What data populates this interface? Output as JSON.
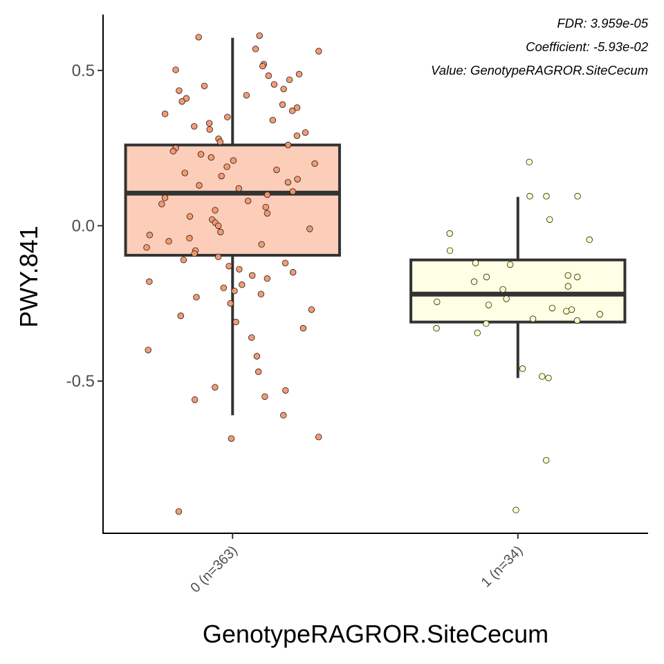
{
  "chart_data": {
    "type": "box",
    "xlabel": "GenotypeRAGROR.SiteCecum",
    "ylabel": "PWY.841",
    "ylim": [
      -0.99,
      0.68
    ],
    "yticks": [
      {
        "value": 0.5,
        "label": "0.5"
      },
      {
        "value": 0.0,
        "label": "0.0"
      },
      {
        "value": -0.5,
        "label": "-0.5"
      }
    ],
    "annotations": [
      "FDR: 3.959e-05",
      "Coefficient: -5.93e-02",
      "Value: GenotypeRAGROR.SiteCecum"
    ],
    "grid": false,
    "legend": "none",
    "categories": [
      "0 (n=363)",
      "1 (n=34)"
    ],
    "boxes": [
      {
        "category": "0 (n=363)",
        "q1": -0.095,
        "median": 0.105,
        "q3": 0.26,
        "whisker_low": -0.61,
        "whisker_high": 0.605,
        "fill": "#fbc5ae",
        "point_color": "#f4966b"
      },
      {
        "category": "1 (n=34)",
        "q1": -0.31,
        "median": -0.22,
        "q3": -0.11,
        "whisker_low": -0.49,
        "whisker_high": 0.093,
        "fill": "#ffffe0",
        "point_color": "#ffffc2"
      }
    ],
    "points": [
      {
        "group": 0,
        "values": [
          0.612,
          0.607,
          0.569,
          0.562,
          0.52,
          0.514,
          0.502,
          0.488,
          0.483,
          0.47,
          0.455,
          0.45,
          0.44,
          0.435,
          0.42,
          0.41,
          0.4,
          0.39,
          0.38,
          0.37,
          0.36,
          0.35,
          0.34,
          0.33,
          0.32,
          0.31,
          0.3,
          0.29,
          0.28,
          0.27,
          0.26,
          0.25,
          0.24,
          0.23,
          0.22,
          0.21,
          0.2,
          0.19,
          0.18,
          0.17,
          0.16,
          0.15,
          0.14,
          0.13,
          0.12,
          0.11,
          0.1,
          0.09,
          0.08,
          0.07,
          0.06,
          0.05,
          0.04,
          0.03,
          0.02,
          0.01,
          0.0,
          -0.01,
          -0.02,
          -0.03,
          -0.04,
          -0.05,
          -0.06,
          -0.07,
          -0.08,
          -0.09,
          -0.1,
          -0.11,
          -0.12,
          -0.13,
          -0.14,
          -0.15,
          -0.16,
          -0.17,
          -0.18,
          -0.19,
          -0.2,
          -0.21,
          -0.22,
          -0.23,
          -0.25,
          -0.27,
          -0.29,
          -0.31,
          -0.33,
          -0.36,
          -0.4,
          -0.42,
          -0.47,
          -0.52,
          -0.53,
          -0.55,
          -0.56,
          -0.61,
          -0.68,
          -0.685,
          -0.92
        ]
      },
      {
        "group": 1,
        "values": [
          0.205,
          0.095,
          0.095,
          0.095,
          0.02,
          -0.025,
          -0.045,
          -0.08,
          -0.12,
          -0.125,
          -0.16,
          -0.165,
          -0.165,
          -0.18,
          -0.195,
          -0.205,
          -0.235,
          -0.245,
          -0.255,
          -0.265,
          -0.27,
          -0.275,
          -0.285,
          -0.3,
          -0.305,
          -0.315,
          -0.33,
          -0.345,
          -0.46,
          -0.485,
          -0.49,
          -0.755,
          -0.915
        ]
      }
    ]
  }
}
